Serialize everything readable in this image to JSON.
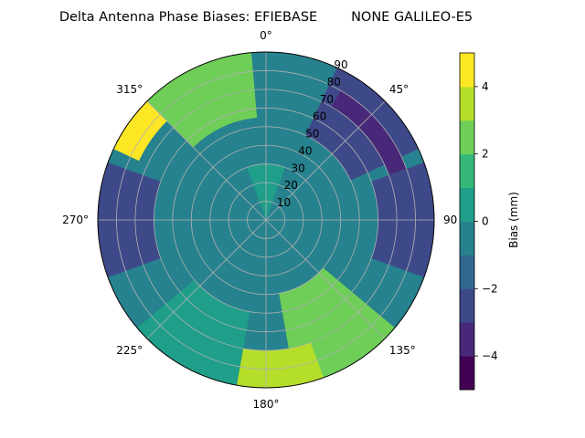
{
  "chart_data": {
    "type": "heatmap",
    "projection": "polar",
    "title": "Delta Antenna Phase Biases: EFIEBASE        NONE GALILEO-E5",
    "azimuth_direction": "clockwise",
    "azimuth_zero": "top",
    "azimuth_ticks": [
      {
        "deg": 0,
        "label": "0°"
      },
      {
        "deg": 45,
        "label": "45°"
      },
      {
        "deg": 90,
        "label": "90"
      },
      {
        "deg": 135,
        "label": "135°"
      },
      {
        "deg": 180,
        "label": "180°"
      },
      {
        "deg": 225,
        "label": "225°"
      },
      {
        "deg": 270,
        "label": "270°"
      },
      {
        "deg": 315,
        "label": "315°"
      }
    ],
    "radial_ticks": [
      10,
      20,
      30,
      40,
      50,
      60,
      70,
      80,
      90
    ],
    "radial_range": [
      0,
      90
    ],
    "grid": true,
    "colorbar": {
      "label": "Bias (mm)",
      "range": [
        -5,
        5
      ],
      "levels": [
        -5,
        -4,
        -3,
        -2,
        -1,
        0,
        1,
        2,
        3,
        4,
        5
      ],
      "ticks": [
        -4,
        -2,
        0,
        2,
        4
      ],
      "tick_labels": [
        "−4",
        "−2",
        "0",
        "2",
        "4"
      ],
      "colors": [
        "#440154",
        "#482878",
        "#3e4989",
        "#31688e",
        "#26828e",
        "#1f9e89",
        "#35b779",
        "#6ece58",
        "#b5de2b",
        "#fde725"
      ]
    },
    "bias_regions": [
      {
        "az": 315,
        "zenith": [
          75,
          90
        ],
        "bias": 4.5
      },
      {
        "az": 335,
        "zenith": [
          55,
          90
        ],
        "bias": 2.5
      },
      {
        "az": 45,
        "zenith": [
          50,
          90
        ],
        "bias": -2.5
      },
      {
        "az": 50,
        "zenith": [
          70,
          80
        ],
        "bias": -3.5
      },
      {
        "az": 90,
        "zenith": [
          60,
          90
        ],
        "bias": -2.5
      },
      {
        "az": 150,
        "zenith": [
          40,
          90
        ],
        "bias": 2.5
      },
      {
        "az": 180,
        "zenith": [
          70,
          90
        ],
        "bias": 3.5
      },
      {
        "az": 210,
        "zenith": [
          50,
          90
        ],
        "bias": 0.5
      },
      {
        "az": 270,
        "zenith": [
          60,
          90
        ],
        "bias": -2.5
      },
      {
        "az": 0,
        "zenith": [
          0,
          30
        ],
        "bias": 0.5
      }
    ]
  }
}
